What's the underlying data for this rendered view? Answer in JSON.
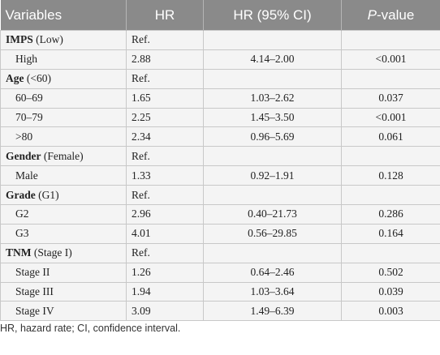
{
  "header": [
    "Variables",
    "HR",
    "HR (95% CI)",
    {
      "italic": "P",
      "text": "-value"
    }
  ],
  "rows": [
    {
      "label": "IMPS",
      "ref_group": "(Low)",
      "hr": "Ref."
    },
    {
      "label": "High",
      "hr": "2.88",
      "ci": "4.14–2.00",
      "p": "<0.001"
    },
    {
      "label": "Age",
      "ref_group": "(<60)",
      "hr": "Ref."
    },
    {
      "label": "60–69",
      "hr": "1.65",
      "ci": "1.03–2.62",
      "p": "0.037"
    },
    {
      "label": "70–79",
      "hr": "2.25",
      "ci": "1.45–3.50",
      "p": "<0.001"
    },
    {
      "label": ">80",
      "hr": "2.34",
      "ci": "0.96–5.69",
      "p": "0.061"
    },
    {
      "label": "Gender",
      "ref_group": "(Female)",
      "hr": "Ref."
    },
    {
      "label": "Male",
      "hr": "1.33",
      "ci": "0.92–1.91",
      "p": "0.128"
    },
    {
      "label": "Grade",
      "ref_group": "(G1)",
      "hr": "Ref."
    },
    {
      "label": "G2",
      "hr": "2.96",
      "ci": "0.40–21.73",
      "p": "0.286"
    },
    {
      "label": "G3",
      "hr": "4.01",
      "ci": "0.56–29.85",
      "p": "0.164"
    },
    {
      "label": "TNM",
      "ref_group": "(Stage I)",
      "hr": "Ref."
    },
    {
      "label": "Stage II",
      "hr": "1.26",
      "ci": "0.64–2.46",
      "p": "0.502"
    },
    {
      "label": "Stage III",
      "hr": "1.94",
      "ci": "1.03–3.64",
      "p": "0.039"
    },
    {
      "label": "Stage IV",
      "hr": "3.09",
      "ci": "1.49–6.39",
      "p": "0.003"
    }
  ],
  "footnote": "HR, hazard rate; CI, confidence interval."
}
